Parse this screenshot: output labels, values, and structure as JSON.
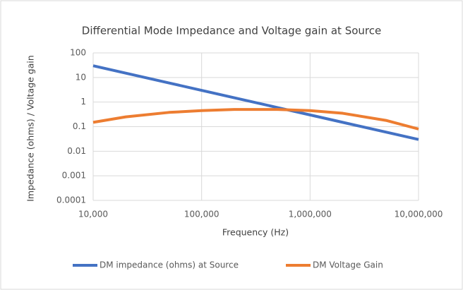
{
  "chart_data": {
    "type": "line",
    "title": "Differential Mode Impedance and Voltage gain at Source",
    "x_label": "Frequency (Hz)",
    "y_label": "Impedance (ohms) / Voltage gain",
    "x": [
      10000,
      20000,
      50000,
      100000,
      200000,
      500000,
      1000000,
      2000000,
      5000000,
      10000000
    ],
    "series": [
      {
        "name": "DM impedance (ohms) at Source",
        "color": "#4472c4",
        "values": [
          30,
          15,
          6,
          3,
          1.5,
          0.6,
          0.3,
          0.15,
          0.06,
          0.03
        ]
      },
      {
        "name": "DM Voltage Gain",
        "color": "#ed7d31",
        "values": [
          0.15,
          0.25,
          0.38,
          0.45,
          0.5,
          0.5,
          0.45,
          0.35,
          0.18,
          0.08
        ]
      }
    ],
    "xscale": "log",
    "yscale": "log",
    "xlim": [
      10000,
      10000000
    ],
    "ylim": [
      0.0001,
      100
    ],
    "xticks": [
      {
        "value": 10000,
        "label": "10,000"
      },
      {
        "value": 100000,
        "label": "100,000"
      },
      {
        "value": 1000000,
        "label": "1,000,000"
      },
      {
        "value": 10000000,
        "label": "10,000,000"
      }
    ],
    "yticks": [
      0.0001,
      0.001,
      0.01,
      0.1,
      1,
      10,
      100
    ],
    "grid": true,
    "legend": "bottom"
  }
}
